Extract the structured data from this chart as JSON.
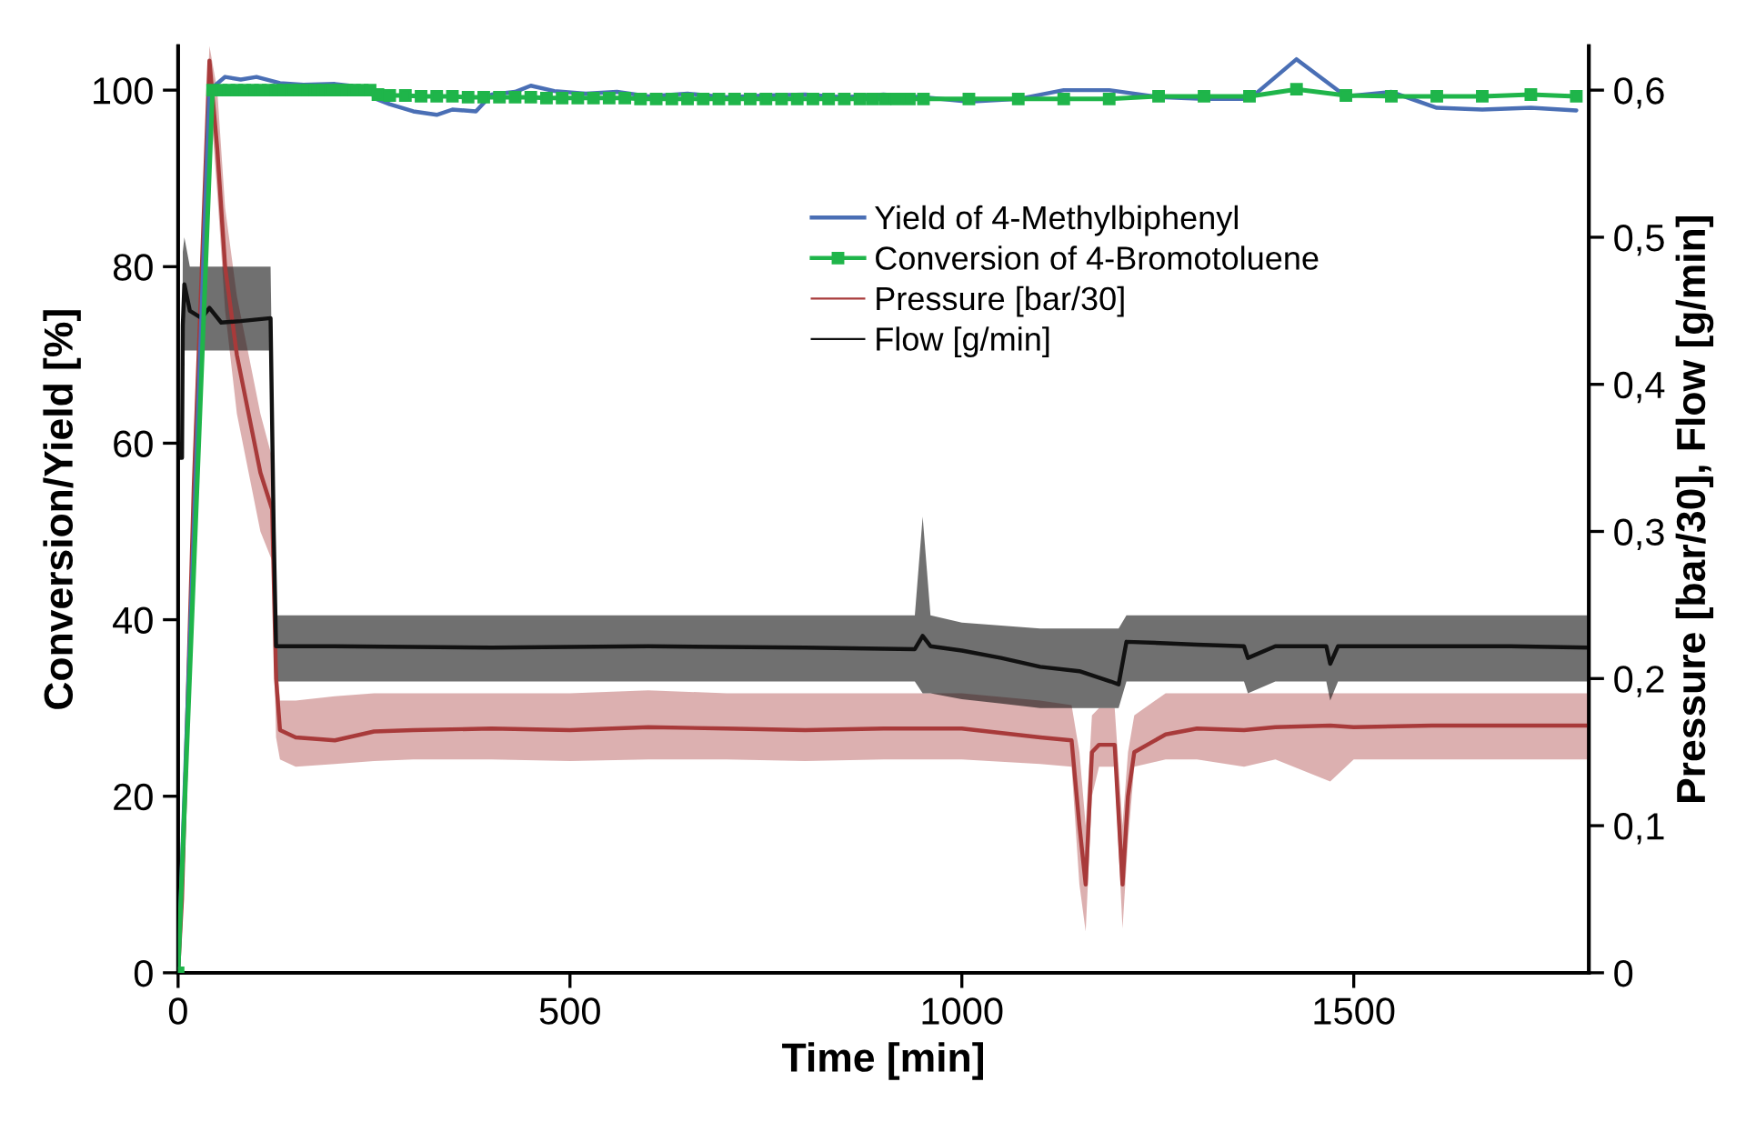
{
  "chart_data": {
    "type": "line",
    "xlabel": "Time [min]",
    "ylabel": "Conversion/Yield [%]",
    "y2label": "Pressure [bar/30], Flow [g/min]",
    "xlim": [
      0,
      1800
    ],
    "xticks": [
      0,
      500,
      1000,
      1500
    ],
    "ylim": [
      0,
      105
    ],
    "yticks": [
      0,
      20,
      40,
      60,
      80,
      100
    ],
    "y2lim": [
      0,
      0.63
    ],
    "y2ticks": [
      {
        "value": 0,
        "label": "0"
      },
      {
        "value": 0.1,
        "label": "0,1"
      },
      {
        "value": 0.2,
        "label": "0,2"
      },
      {
        "value": 0.3,
        "label": "0,3"
      },
      {
        "value": 0.4,
        "label": "0,4"
      },
      {
        "value": 0.5,
        "label": "0,5"
      },
      {
        "value": 0.6,
        "label": "0,6"
      }
    ],
    "grid": false,
    "legend": "top right",
    "line_style": "solid",
    "series": [
      {
        "name": "Yield of 4-Methylbiphenyl",
        "color": "#4a6fb5",
        "marker": "none",
        "x": [
          0,
          40,
          60,
          80,
          100,
          130,
          160,
          200,
          240,
          253,
          270,
          300,
          330,
          350,
          380,
          400,
          430,
          450,
          480,
          520,
          560,
          600,
          650,
          700,
          750,
          800,
          850,
          900,
          950,
          1009,
          1072,
          1130,
          1188,
          1251,
          1309,
          1367,
          1427,
          1490,
          1548,
          1606,
          1664,
          1726,
          1784
        ],
        "values": [
          0,
          100,
          101.5,
          101.2,
          101.5,
          100.8,
          100.6,
          100.7,
          100.3,
          99,
          98.4,
          97.6,
          97.2,
          97.8,
          97.6,
          99.5,
          99.8,
          100.5,
          99.9,
          99.6,
          99.8,
          99.3,
          99.6,
          99.2,
          99.4,
          99.5,
          99.2,
          99.5,
          99.2,
          98.7,
          99,
          100,
          100,
          99.2,
          99,
          99,
          103.5,
          99.3,
          99.8,
          98,
          97.8,
          98,
          97.7
        ]
      },
      {
        "name": "Conversion of 4-Bromotoluene",
        "color": "#1fb54a",
        "marker": "square",
        "x": [
          0,
          44,
          55,
          65,
          75,
          85,
          95,
          105,
          115,
          125,
          135,
          145,
          155,
          165,
          175,
          185,
          195,
          205,
          215,
          225,
          235,
          245,
          255,
          270,
          290,
          310,
          330,
          350,
          370,
          390,
          410,
          430,
          450,
          470,
          490,
          510,
          530,
          550,
          570,
          590,
          610,
          630,
          650,
          670,
          690,
          710,
          730,
          750,
          770,
          790,
          810,
          830,
          850,
          870,
          886,
          902,
          917,
          933,
          951,
          1009,
          1072,
          1130,
          1188,
          1251,
          1309,
          1367,
          1427,
          1490,
          1548,
          1606,
          1664,
          1726,
          1784
        ],
        "values": [
          0,
          100,
          100,
          100,
          100,
          100,
          100,
          100,
          100,
          100,
          100,
          100,
          100,
          100,
          100,
          100,
          100,
          100,
          100,
          100,
          100,
          100,
          99.5,
          99.4,
          99.4,
          99.3,
          99.3,
          99.3,
          99.2,
          99.2,
          99.2,
          99.2,
          99.2,
          99.1,
          99.1,
          99.1,
          99.1,
          99.1,
          99.1,
          99,
          99,
          99,
          99,
          99,
          99,
          99,
          99,
          99,
          99,
          99,
          99,
          99,
          99,
          99,
          99,
          99,
          99,
          99,
          99,
          99,
          99,
          99,
          99,
          99.3,
          99.3,
          99.3,
          100.1,
          99.4,
          99.3,
          99.3,
          99.3,
          99.5,
          99.3
        ]
      },
      {
        "name": "Pressure [bar/30]",
        "color": "#a83a3a",
        "axis": "y2",
        "marker": "none",
        "x": [
          0,
          5,
          20,
          40,
          50,
          60,
          75,
          90,
          105,
          120,
          125,
          130,
          150,
          200,
          250,
          300,
          400,
          500,
          600,
          700,
          800,
          900,
          1000,
          1100,
          1140,
          1150,
          1158,
          1166,
          1175,
          1195,
          1205,
          1212,
          1220,
          1260,
          1300,
          1360,
          1400,
          1470,
          1500,
          1600,
          1700,
          1800
        ],
        "values": [
          0,
          0.05,
          0.33,
          0.62,
          0.56,
          0.48,
          0.42,
          0.38,
          0.34,
          0.315,
          0.2,
          0.165,
          0.16,
          0.158,
          0.164,
          0.165,
          0.166,
          0.165,
          0.167,
          0.166,
          0.165,
          0.166,
          0.166,
          0.16,
          0.158,
          0.1,
          0.06,
          0.15,
          0.155,
          0.155,
          0.06,
          0.12,
          0.15,
          0.162,
          0.166,
          0.165,
          0.167,
          0.168,
          0.167,
          0.168,
          0.168,
          0.168
        ],
        "lower": [
          0,
          0.04,
          0.3,
          0.6,
          0.53,
          0.45,
          0.38,
          0.34,
          0.3,
          0.28,
          0.16,
          0.145,
          0.14,
          0.142,
          0.144,
          0.145,
          0.145,
          0.144,
          0.145,
          0.145,
          0.144,
          0.145,
          0.145,
          0.142,
          0.14,
          0.06,
          0.028,
          0.12,
          0.14,
          0.14,
          0.03,
          0.09,
          0.14,
          0.145,
          0.145,
          0.14,
          0.145,
          0.13,
          0.145,
          0.145,
          0.145,
          0.145
        ],
        "upper": [
          0,
          0.06,
          0.36,
          0.63,
          0.6,
          0.52,
          0.46,
          0.42,
          0.38,
          0.35,
          0.22,
          0.185,
          0.185,
          0.188,
          0.19,
          0.19,
          0.19,
          0.19,
          0.192,
          0.19,
          0.19,
          0.19,
          0.19,
          0.185,
          0.182,
          0.15,
          0.1,
          0.175,
          0.18,
          0.18,
          0.1,
          0.15,
          0.175,
          0.19,
          0.19,
          0.19,
          0.19,
          0.19,
          0.19,
          0.19,
          0.19,
          0.19
        ]
      },
      {
        "name": "Flow [g/min]",
        "color": "#111111",
        "axis": "y2",
        "marker": "none",
        "x": [
          0,
          5,
          6,
          8,
          15,
          30,
          40,
          55,
          80,
          118,
          122,
          125,
          130,
          200,
          400,
          600,
          800,
          940,
          950,
          960,
          1000,
          1050,
          1100,
          1150,
          1190,
          1200,
          1210,
          1260,
          1300,
          1360,
          1365,
          1400,
          1465,
          1470,
          1480,
          1600,
          1700,
          1800
        ],
        "values": [
          0.35,
          0.35,
          0.44,
          0.468,
          0.45,
          0.445,
          0.452,
          0.442,
          0.443,
          0.445,
          0.3,
          0.222,
          0.222,
          0.222,
          0.221,
          0.222,
          0.221,
          0.22,
          0.229,
          0.222,
          0.219,
          0.214,
          0.208,
          0.205,
          0.198,
          0.196,
          0.225,
          0.224,
          0.223,
          0.222,
          0.214,
          0.222,
          0.222,
          0.21,
          0.222,
          0.222,
          0.222,
          0.221
        ],
        "lower": [
          0.35,
          0.35,
          0.4,
          0.423,
          0.423,
          0.423,
          0.423,
          0.423,
          0.423,
          0.423,
          0.28,
          0.198,
          0.198,
          0.198,
          0.198,
          0.198,
          0.198,
          0.198,
          0.19,
          0.19,
          0.186,
          0.183,
          0.18,
          0.18,
          0.18,
          0.18,
          0.198,
          0.198,
          0.198,
          0.198,
          0.19,
          0.198,
          0.198,
          0.185,
          0.198,
          0.198,
          0.198,
          0.198
        ],
        "upper": [
          0.35,
          0.35,
          0.49,
          0.5,
          0.48,
          0.48,
          0.48,
          0.48,
          0.48,
          0.48,
          0.33,
          0.243,
          0.243,
          0.243,
          0.243,
          0.243,
          0.243,
          0.243,
          0.31,
          0.243,
          0.238,
          0.236,
          0.234,
          0.234,
          0.234,
          0.234,
          0.243,
          0.243,
          0.243,
          0.243,
          0.243,
          0.243,
          0.243,
          0.243,
          0.243,
          0.243,
          0.243,
          0.243
        ]
      }
    ]
  }
}
